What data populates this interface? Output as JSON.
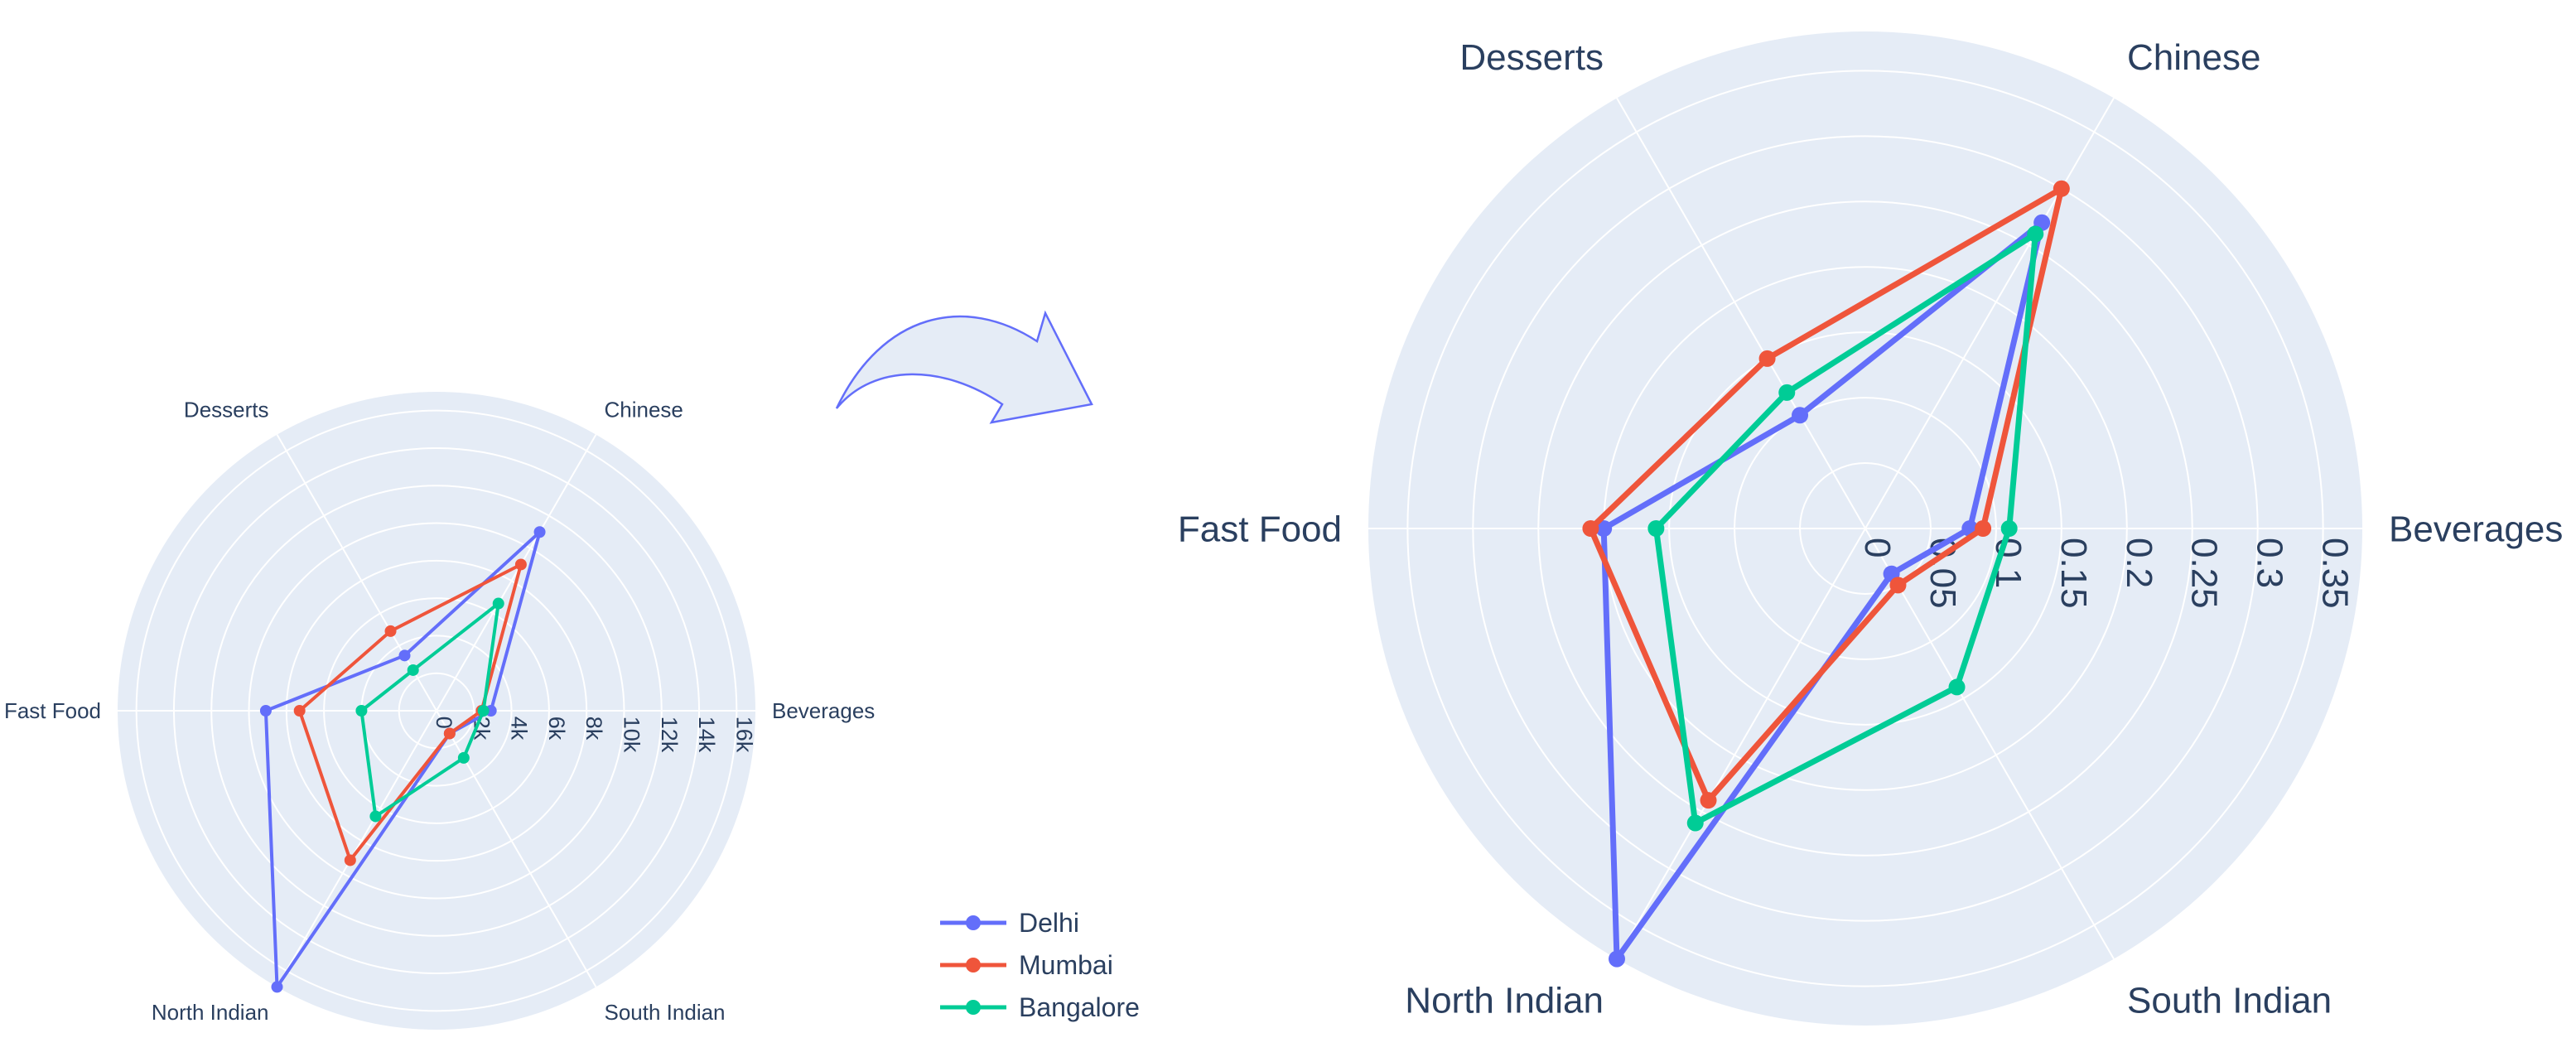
{
  "chart_data": [
    {
      "type": "radar",
      "categories": [
        "Beverages",
        "Chinese",
        "Desserts",
        "Fast Food",
        "North Indian",
        "South Indian"
      ],
      "radial_range": [
        0,
        17000
      ],
      "radial_ticks": [
        0,
        2000,
        4000,
        6000,
        8000,
        10000,
        12000,
        14000,
        16000
      ],
      "radial_tick_labels": [
        "0",
        "2k",
        "4k",
        "6k",
        "8k",
        "10k",
        "12k",
        "14k",
        "16k"
      ],
      "series": [
        {
          "name": "Delhi",
          "values": [
            2900,
            11000,
            3400,
            9100,
            17000,
            1400
          ]
        },
        {
          "name": "Mumbai",
          "values": [
            2400,
            9000,
            4900,
            7300,
            9200,
            1400
          ]
        },
        {
          "name": "Bangalore",
          "values": [
            2500,
            6600,
            2500,
            4000,
            6500,
            2900
          ]
        }
      ]
    },
    {
      "type": "radar",
      "categories": [
        "Beverages",
        "Chinese",
        "Desserts",
        "Fast Food",
        "North Indian",
        "South Indian"
      ],
      "radial_range": [
        0,
        0.38
      ],
      "radial_ticks": [
        0,
        0.05,
        0.1,
        0.15,
        0.2,
        0.25,
        0.3,
        0.35
      ],
      "radial_tick_labels": [
        "0",
        "0.05",
        "0.1",
        "0.15",
        "0.2",
        "0.25",
        "0.3",
        "0.35"
      ],
      "series": [
        {
          "name": "Delhi",
          "values": [
            0.08,
            0.27,
            0.1,
            0.2,
            0.38,
            0.04
          ]
        },
        {
          "name": "Mumbai",
          "values": [
            0.09,
            0.3,
            0.15,
            0.21,
            0.24,
            0.05
          ]
        },
        {
          "name": "Bangalore",
          "values": [
            0.11,
            0.26,
            0.12,
            0.16,
            0.26,
            0.14
          ]
        }
      ]
    }
  ],
  "legend": {
    "placement": "bottom-center",
    "entries": [
      "Delhi",
      "Mumbai",
      "Bangalore"
    ]
  },
  "colors": {
    "Delhi": "#636efa",
    "Mumbai": "#ef553b",
    "Bangalore": "#00cc96",
    "arrow_fill": "#e5ecf6",
    "arrow_stroke": "#636efa"
  }
}
